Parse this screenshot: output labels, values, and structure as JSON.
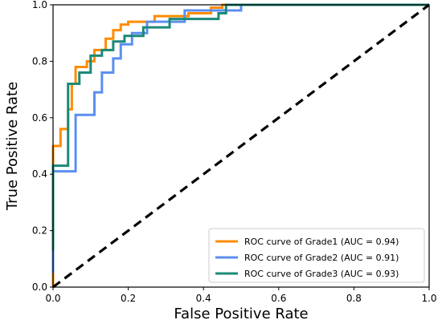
{
  "chart_data": {
    "type": "line",
    "title": "",
    "xlabel": "False Positive Rate",
    "ylabel": "True Positive Rate",
    "xlim": [
      0.0,
      1.0
    ],
    "ylim": [
      0.0,
      1.0
    ],
    "xticks": [
      "0.0",
      "0.2",
      "0.4",
      "0.6",
      "0.8",
      "1.0"
    ],
    "yticks": [
      "0.0",
      "0.2",
      "0.4",
      "0.6",
      "0.8",
      "1.0"
    ],
    "grid": false,
    "legend_position": "bottom-right",
    "series": [
      {
        "name": "ROC curve of  Grade1 (AUC = 0.94)",
        "color": "#ff8c00",
        "x": [
          0.0,
          0.0,
          0.0,
          0.02,
          0.02,
          0.04,
          0.04,
          0.05,
          0.05,
          0.06,
          0.06,
          0.09,
          0.09,
          0.11,
          0.11,
          0.14,
          0.14,
          0.16,
          0.16,
          0.18,
          0.18,
          0.2,
          0.2,
          0.27,
          0.27,
          0.36,
          0.36,
          0.42,
          0.42,
          0.45,
          0.45,
          1.0
        ],
        "y": [
          0.0,
          0.43,
          0.5,
          0.5,
          0.56,
          0.56,
          0.63,
          0.63,
          0.72,
          0.72,
          0.78,
          0.78,
          0.8,
          0.8,
          0.84,
          0.84,
          0.88,
          0.88,
          0.91,
          0.91,
          0.93,
          0.93,
          0.94,
          0.94,
          0.96,
          0.96,
          0.97,
          0.97,
          0.99,
          0.99,
          1.0,
          1.0
        ]
      },
      {
        "name": "ROC curve of  Grade2 (AUC = 0.91)",
        "color": "#5b8ff0",
        "x": [
          0.0,
          0.0,
          0.0,
          0.06,
          0.06,
          0.11,
          0.11,
          0.13,
          0.13,
          0.16,
          0.16,
          0.18,
          0.18,
          0.21,
          0.21,
          0.25,
          0.25,
          0.35,
          0.35,
          0.5,
          0.5,
          1.0
        ],
        "y": [
          0.05,
          0.38,
          0.41,
          0.41,
          0.61,
          0.61,
          0.69,
          0.69,
          0.76,
          0.76,
          0.81,
          0.81,
          0.86,
          0.86,
          0.9,
          0.9,
          0.94,
          0.94,
          0.98,
          0.98,
          1.0,
          1.0
        ]
      },
      {
        "name": "ROC curve of  Grade3 (AUC = 0.93)",
        "color": "#1b8a78",
        "x": [
          0.0,
          0.0,
          0.0,
          0.04,
          0.04,
          0.07,
          0.07,
          0.1,
          0.1,
          0.13,
          0.13,
          0.16,
          0.16,
          0.19,
          0.19,
          0.24,
          0.24,
          0.31,
          0.31,
          0.44,
          0.44,
          0.46,
          0.46,
          1.0
        ],
        "y": [
          0.13,
          0.4,
          0.43,
          0.43,
          0.72,
          0.72,
          0.76,
          0.76,
          0.82,
          0.82,
          0.84,
          0.84,
          0.87,
          0.87,
          0.89,
          0.89,
          0.92,
          0.92,
          0.95,
          0.95,
          0.97,
          0.97,
          1.0,
          1.0
        ]
      },
      {
        "name": "",
        "color": "#000000",
        "dashed": true,
        "x": [
          0.0,
          1.0
        ],
        "y": [
          0.0,
          1.0
        ]
      }
    ]
  }
}
